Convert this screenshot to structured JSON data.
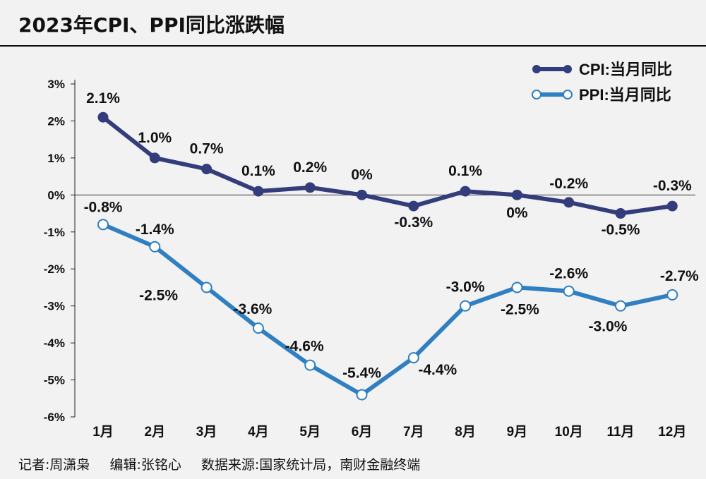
{
  "header": {
    "title": "2023年CPI、PPI同比涨跌幅"
  },
  "footer": {
    "reporter": "记者:周潇枭",
    "editor": "编辑:张铭心",
    "source": "数据来源:国家统计局，南财金融终端"
  },
  "chart_data": {
    "type": "line",
    "title": "2023年CPI、PPI同比涨跌幅",
    "categories": [
      "1月",
      "2月",
      "3月",
      "4月",
      "5月",
      "6月",
      "7月",
      "8月",
      "9月",
      "10月",
      "11月",
      "12月"
    ],
    "ylim": [
      -6,
      3
    ],
    "yticks": [
      3,
      2,
      1,
      0,
      -1,
      -2,
      -3,
      -4,
      -5,
      -6
    ],
    "ytick_labels": [
      "3%",
      "2%",
      "1%",
      "0%",
      "-1%",
      "-2%",
      "-3%",
      "-4%",
      "-5%",
      "-6%"
    ],
    "grid": false,
    "legend_position": "top-right",
    "series": [
      {
        "name": "CPI:当月同比",
        "color": "#343d7c",
        "marker": "filled-circle",
        "values": [
          2.1,
          1.0,
          0.7,
          0.1,
          0.2,
          0,
          -0.3,
          0.1,
          0,
          -0.2,
          -0.5,
          -0.3
        ],
        "labels": [
          "2.1%",
          "1.0%",
          "0.7%",
          "0.1%",
          "0.2%",
          "0%",
          "-0.3%",
          "0.1%",
          "0%",
          "-0.2%",
          "-0.5%",
          "-0.3%"
        ]
      },
      {
        "name": "PPI:当月同比",
        "color": "#2f7fc1",
        "marker": "hollow-circle",
        "values": [
          -0.8,
          -1.4,
          -2.5,
          -3.6,
          -4.6,
          -5.4,
          -4.4,
          -3.0,
          -2.5,
          -2.6,
          -3.0,
          -2.7
        ],
        "labels": [
          "-0.8%",
          "-1.4%",
          "-2.5%",
          "-3.6%",
          "-4.6%",
          "-5.4%",
          "-4.4%",
          "-3.0%",
          "-2.5%",
          "-2.6%",
          "-3.0%",
          "-2.7%"
        ]
      }
    ]
  }
}
